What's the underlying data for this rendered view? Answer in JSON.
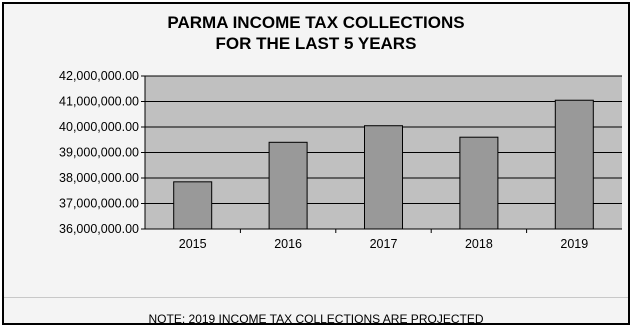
{
  "title_line1": "PARMA INCOME TAX COLLECTIONS",
  "title_line2": "FOR THE LAST 5 YEARS",
  "note": "NOTE: 2019 INCOME TAX COLLECTIONS ARE PROJECTED",
  "colors": {
    "plot_bg": "#c0c0c0",
    "bar": "#999999",
    "frame_bg": "#f4f4f4"
  },
  "chart_data": {
    "type": "bar",
    "title": "PARMA INCOME TAX COLLECTIONS FOR THE LAST 5 YEARS",
    "categories": [
      "2015",
      "2016",
      "2017",
      "2018",
      "2019"
    ],
    "values": [
      37850000,
      39400000,
      40050000,
      39600000,
      41050000
    ],
    "ylim": [
      36000000,
      42000000
    ],
    "yticks": [
      36000000,
      37000000,
      38000000,
      39000000,
      40000000,
      41000000,
      42000000
    ],
    "ytick_labels": [
      "36,000,000.00",
      "37,000,000.00",
      "38,000,000.00",
      "39,000,000.00",
      "40,000,000.00",
      "41,000,000.00",
      "42,000,000.00"
    ],
    "grid": true,
    "xlabel": "",
    "ylabel": ""
  }
}
